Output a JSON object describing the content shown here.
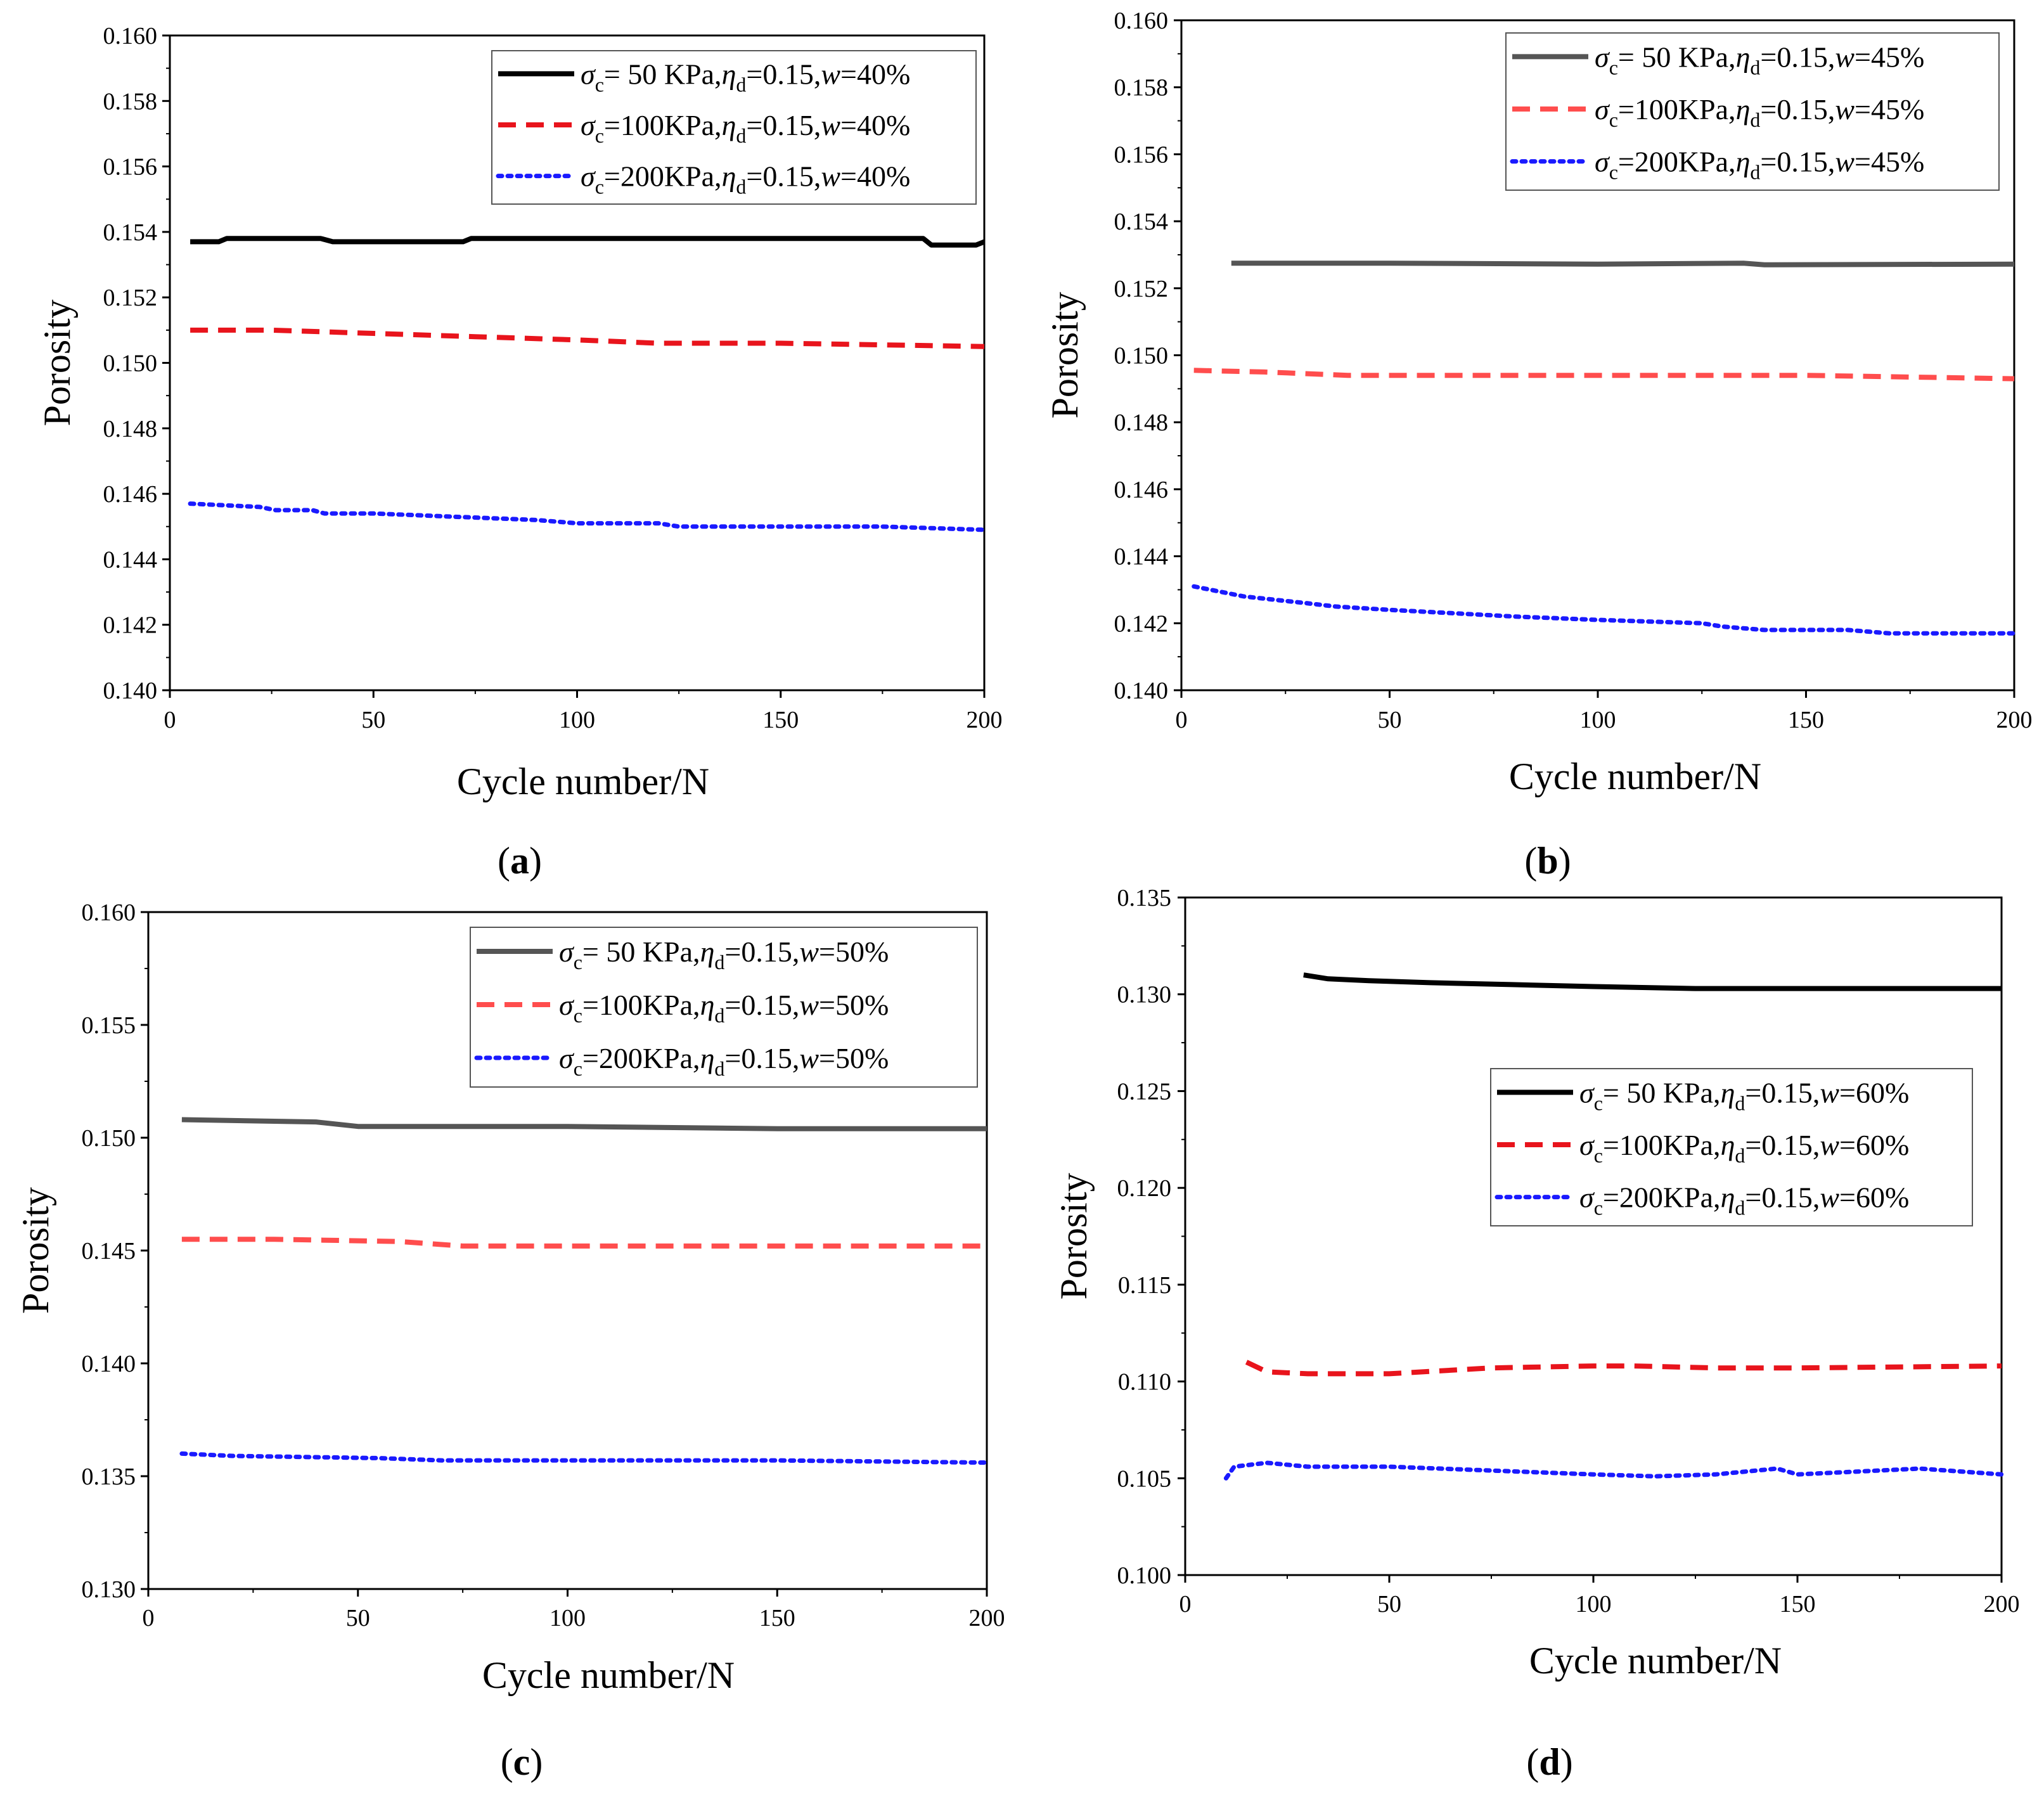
{
  "figure": {
    "labels": {
      "open": "(",
      "close": ")"
    }
  },
  "chart_data": [
    {
      "type": "line",
      "panel_label": "a",
      "xlabel": "Cycle number/N",
      "ylabel": "Porosity",
      "xlim": [
        0,
        200
      ],
      "ylim": [
        0.14,
        0.16
      ],
      "x_ticks": [
        "0",
        "50",
        "100",
        "150",
        "200"
      ],
      "y_ticks": [
        "0.140",
        "0.142",
        "0.144",
        "0.146",
        "0.148",
        "0.150",
        "0.152",
        "0.154",
        "0.156",
        "0.158",
        "0.160"
      ],
      "legend_position": "top-right",
      "series": [
        {
          "name": "σc= 50 KPa,ηd=0.15,w=40%",
          "label_sigma_value": "= 50 KPa,",
          "label_w_value": "=40%",
          "style": "solid",
          "color": "#000000",
          "points": [
            [
              5,
              0.1537
            ],
            [
              12,
              0.1537
            ],
            [
              14,
              0.1538
            ],
            [
              25,
              0.1538
            ],
            [
              27,
              0.1538
            ],
            [
              37,
              0.1538
            ],
            [
              40,
              0.1537
            ],
            [
              72,
              0.1537
            ],
            [
              74,
              0.1538
            ],
            [
              185,
              0.1538
            ],
            [
              187,
              0.1536
            ],
            [
              198,
              0.1536
            ],
            [
              200,
              0.1537
            ]
          ]
        },
        {
          "name": "σc=100KPa,ηd=0.15,w=40%",
          "label_sigma_value": "=100KPa,",
          "label_w_value": "=40%",
          "style": "dashed",
          "color": "#e8141c",
          "points": [
            [
              5,
              0.151
            ],
            [
              25,
              0.151
            ],
            [
              50,
              0.1509
            ],
            [
              75,
              0.1508
            ],
            [
              100,
              0.1507
            ],
            [
              120,
              0.1506
            ],
            [
              150,
              0.1506
            ],
            [
              200,
              0.1505
            ]
          ]
        },
        {
          "name": "σc=200KPa,ηd=0.15,w=40%",
          "label_sigma_value": "=200KPa,",
          "label_w_value": "=40%",
          "style": "dotted",
          "color": "#1a1aff",
          "points": [
            [
              5,
              0.1457
            ],
            [
              22,
              0.1456
            ],
            [
              26,
              0.1455
            ],
            [
              35,
              0.1455
            ],
            [
              38,
              0.1454
            ],
            [
              50,
              0.1454
            ],
            [
              70,
              0.1453
            ],
            [
              90,
              0.1452
            ],
            [
              100,
              0.1451
            ],
            [
              120,
              0.1451
            ],
            [
              125,
              0.145
            ],
            [
              150,
              0.145
            ],
            [
              175,
              0.145
            ],
            [
              200,
              0.1449
            ]
          ]
        }
      ]
    },
    {
      "type": "line",
      "panel_label": "b",
      "xlabel": "Cycle number/N",
      "ylabel": "Porosity",
      "xlim": [
        0,
        200
      ],
      "ylim": [
        0.14,
        0.16
      ],
      "x_ticks": [
        "0",
        "50",
        "100",
        "150",
        "200"
      ],
      "y_ticks": [
        "0.140",
        "0.142",
        "0.144",
        "0.146",
        "0.148",
        "0.150",
        "0.152",
        "0.154",
        "0.156",
        "0.158",
        "0.160"
      ],
      "legend_position": "top-right",
      "series": [
        {
          "name": "σc= 50 KPa,ηd=0.15,w=45%",
          "label_sigma_value": "= 50 KPa,",
          "label_w_value": "=45%",
          "style": "solid",
          "color": "#555555",
          "points": [
            [
              12,
              0.15275
            ],
            [
              50,
              0.15275
            ],
            [
              100,
              0.15272
            ],
            [
              135,
              0.15275
            ],
            [
              140,
              0.1527
            ],
            [
              200,
              0.15272
            ]
          ]
        },
        {
          "name": "σc=100KPa,ηd=0.15,w=45%",
          "label_sigma_value": "=100KPa,",
          "label_w_value": "=45%",
          "style": "dashed",
          "color": "#ff4d4d",
          "points": [
            [
              3,
              0.14955
            ],
            [
              20,
              0.1495
            ],
            [
              40,
              0.1494
            ],
            [
              100,
              0.1494
            ],
            [
              150,
              0.1494
            ],
            [
              200,
              0.1493
            ]
          ]
        },
        {
          "name": "σc=200KPa,ηd=0.15,w=45%",
          "label_sigma_value": "=200KPa,",
          "label_w_value": "=45%",
          "style": "dotted",
          "color": "#1a1aff",
          "points": [
            [
              3,
              0.1431
            ],
            [
              15,
              0.1428
            ],
            [
              30,
              0.1426
            ],
            [
              37,
              0.1425
            ],
            [
              50,
              0.1424
            ],
            [
              65,
              0.1423
            ],
            [
              80,
              0.1422
            ],
            [
              100,
              0.1421
            ],
            [
              125,
              0.142
            ],
            [
              130,
              0.1419
            ],
            [
              140,
              0.1418
            ],
            [
              160,
              0.1418
            ],
            [
              170,
              0.1417
            ],
            [
              200,
              0.1417
            ]
          ]
        }
      ]
    },
    {
      "type": "line",
      "panel_label": "c",
      "xlabel": "Cycle number/N",
      "ylabel": "Porosity",
      "xlim": [
        0,
        200
      ],
      "ylim": [
        0.13,
        0.16
      ],
      "x_ticks": [
        "0",
        "50",
        "100",
        "150",
        "200"
      ],
      "y_ticks": [
        "0.130",
        "0.135",
        "0.140",
        "0.145",
        "0.150",
        "0.155",
        "0.160"
      ],
      "legend_position": "top-right",
      "series": [
        {
          "name": "σc= 50 KPa,ηd=0.15,w=50%",
          "label_sigma_value": "= 50 KPa,",
          "label_w_value": "=50%",
          "style": "solid",
          "color": "#555555",
          "points": [
            [
              8,
              0.1508
            ],
            [
              40,
              0.1507
            ],
            [
              50,
              0.1505
            ],
            [
              100,
              0.1505
            ],
            [
              150,
              0.1504
            ],
            [
              200,
              0.1504
            ]
          ]
        },
        {
          "name": "σc=100KPa,ηd=0.15,w=50%",
          "label_sigma_value": "=100KPa,",
          "label_w_value": "=50%",
          "style": "dashed",
          "color": "#ff4d4d",
          "points": [
            [
              8,
              0.1455
            ],
            [
              30,
              0.1455
            ],
            [
              60,
              0.1454
            ],
            [
              75,
              0.1452
            ],
            [
              100,
              0.1452
            ],
            [
              150,
              0.1452
            ],
            [
              200,
              0.1452
            ]
          ]
        },
        {
          "name": "σc=200KPa,ηd=0.15,w=50%",
          "label_sigma_value": "=200KPa,",
          "label_w_value": "=50%",
          "style": "dotted",
          "color": "#1a1aff",
          "points": [
            [
              8,
              0.136
            ],
            [
              20,
              0.1359
            ],
            [
              55,
              0.1358
            ],
            [
              70,
              0.1357
            ],
            [
              100,
              0.1357
            ],
            [
              150,
              0.1357
            ],
            [
              200,
              0.1356
            ]
          ]
        }
      ]
    },
    {
      "type": "line",
      "panel_label": "d",
      "xlabel": "Cycle number/N",
      "ylabel": "Porosity",
      "xlim": [
        0,
        200
      ],
      "ylim": [
        0.1,
        0.135
      ],
      "x_ticks": [
        "0",
        "50",
        "100",
        "150",
        "200"
      ],
      "y_ticks": [
        "0.100",
        "0.105",
        "0.110",
        "0.115",
        "0.120",
        "0.125",
        "0.130",
        "0.135"
      ],
      "legend_position": "center-right",
      "series": [
        {
          "name": "σc= 50 KPa,ηd=0.15,w=60%",
          "label_sigma_value": "= 50 KPa,",
          "label_w_value": "=60%",
          "style": "solid",
          "color": "#000000",
          "points": [
            [
              29,
              0.131
            ],
            [
              35,
              0.1308
            ],
            [
              45,
              0.1307
            ],
            [
              60,
              0.1306
            ],
            [
              80,
              0.1305
            ],
            [
              100,
              0.1304
            ],
            [
              125,
              0.1303
            ],
            [
              150,
              0.1303
            ],
            [
              200,
              0.1303
            ]
          ]
        },
        {
          "name": "σc=100KPa,ηd=0.15,w=60%",
          "label_sigma_value": "=100KPa,",
          "label_w_value": "=60%",
          "style": "dashed",
          "color": "#e8141c",
          "points": [
            [
              15,
              0.111
            ],
            [
              20,
              0.1105
            ],
            [
              30,
              0.1104
            ],
            [
              50,
              0.1104
            ],
            [
              75,
              0.1107
            ],
            [
              100,
              0.1108
            ],
            [
              110,
              0.1108
            ],
            [
              130,
              0.1107
            ],
            [
              150,
              0.1107
            ],
            [
              200,
              0.1108
            ]
          ]
        },
        {
          "name": "σc=200KPa,ηd=0.15,w=60%",
          "label_sigma_value": "=200KPa,",
          "label_w_value": "=60%",
          "style": "dotted",
          "color": "#1a1aff",
          "points": [
            [
              10,
              0.105
            ],
            [
              12,
              0.1056
            ],
            [
              20,
              0.1058
            ],
            [
              30,
              0.1056
            ],
            [
              50,
              0.1056
            ],
            [
              75,
              0.1054
            ],
            [
              100,
              0.1052
            ],
            [
              115,
              0.1051
            ],
            [
              130,
              0.1052
            ],
            [
              145,
              0.1055
            ],
            [
              150,
              0.1052
            ],
            [
              180,
              0.1055
            ],
            [
              200,
              0.1052
            ]
          ]
        }
      ]
    }
  ]
}
